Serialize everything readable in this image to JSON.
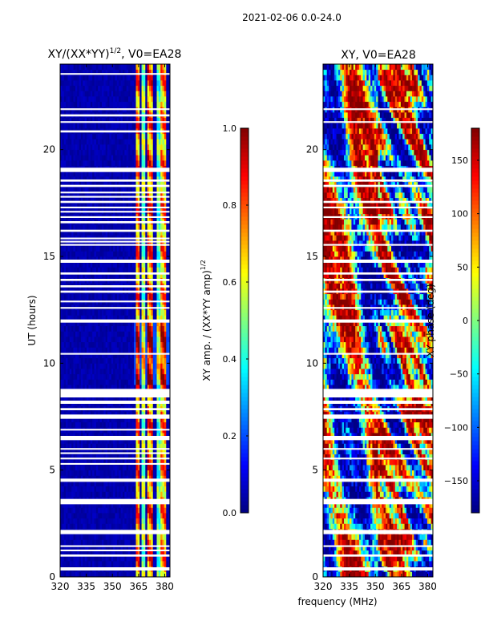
{
  "figure": {
    "suptitle": "2021-02-06 0.0-24.0",
    "xlabel_shared": "frequency (MHz)"
  },
  "chart_data": [
    {
      "type": "heatmap",
      "title": "XY/(XX*YY)^(1/2), V0=EA28",
      "title_main": "XY/(XX*YY)",
      "title_sup": "1/2",
      "title_suffix": ", V0=EA28",
      "xlabel": "frequency (MHz)",
      "ylabel": "UT (hours)",
      "xlim": [
        320,
        383
      ],
      "ylim": [
        0,
        24
      ],
      "xticks": [
        320,
        335,
        350,
        365,
        380
      ],
      "yticks": [
        0,
        5,
        10,
        15,
        20
      ],
      "colormap": "jet",
      "colorbar": {
        "label_main": "XY amp. / (XX*YY amp)",
        "label_sup": "1/2",
        "vmin": 0.0,
        "vmax": 1.0,
        "ticks": [
          0.0,
          0.2,
          0.4,
          0.6,
          0.8,
          1.0
        ],
        "tick_labels": [
          "0.0",
          "0.2",
          "0.4",
          "0.6",
          "0.8",
          "1.0"
        ]
      },
      "flagged_hours": [
        [
          0.3,
          0.45
        ],
        [
          0.95,
          1.05
        ],
        [
          1.2,
          1.28
        ],
        [
          1.4,
          1.48
        ],
        [
          2.0,
          2.2
        ],
        [
          3.4,
          3.65
        ],
        [
          4.45,
          4.6
        ],
        [
          5.25,
          5.33
        ],
        [
          5.5,
          5.58
        ],
        [
          5.75,
          5.83
        ],
        [
          5.95,
          6.03
        ],
        [
          6.4,
          6.6
        ],
        [
          6.85,
          6.93
        ],
        [
          7.4,
          7.6
        ],
        [
          7.8,
          7.9
        ],
        [
          8.1,
          8.25
        ],
        [
          8.4,
          8.8
        ],
        [
          10.4,
          10.48
        ],
        [
          11.9,
          12.05
        ],
        [
          12.55,
          12.63
        ],
        [
          12.85,
          12.93
        ],
        [
          13.3,
          13.4
        ],
        [
          13.55,
          13.65
        ],
        [
          13.85,
          13.95
        ],
        [
          14.15,
          14.25
        ],
        [
          14.7,
          14.85
        ],
        [
          15.5,
          15.58
        ],
        [
          15.65,
          15.73
        ],
        [
          15.8,
          15.88
        ],
        [
          16.15,
          16.25
        ],
        [
          16.55,
          16.65
        ],
        [
          16.8,
          16.88
        ],
        [
          17.05,
          17.13
        ],
        [
          17.25,
          17.33
        ],
        [
          17.5,
          17.6
        ],
        [
          17.75,
          17.83
        ],
        [
          17.95,
          18.03
        ],
        [
          18.25,
          18.35
        ],
        [
          18.5,
          18.6
        ],
        [
          18.95,
          19.15
        ],
        [
          20.8,
          20.9
        ],
        [
          21.25,
          21.33
        ],
        [
          21.55,
          21.65
        ],
        [
          21.85,
          21.93
        ],
        [
          23.5,
          23.58
        ]
      ],
      "bands": [
        {
          "fmin": 363,
          "fmax": 365.5,
          "value_low": 0.55,
          "value_high": 0.85
        },
        {
          "fmin": 367,
          "fmax": 369,
          "value_low": 0.35,
          "value_high": 0.6
        },
        {
          "fmin": 370,
          "fmax": 373,
          "value_low": 0.55,
          "value_high": 0.9
        },
        {
          "fmin": 375,
          "fmax": 377.5,
          "value_low": 0.3,
          "value_high": 0.55
        },
        {
          "fmin": 378,
          "fmax": 381,
          "value_low": 0.5,
          "value_high": 0.85
        }
      ]
    },
    {
      "type": "heatmap",
      "title": "XY, V0=EA28",
      "xlabel": "frequency (MHz)",
      "ylabel": "",
      "xlim": [
        320,
        383
      ],
      "ylim": [
        0,
        24
      ],
      "xticks": [
        320,
        335,
        350,
        365,
        380
      ],
      "yticks": [
        0,
        5,
        10,
        15,
        20
      ],
      "colormap": "jet",
      "colorbar": {
        "label": "XY phase (deg)",
        "vmin": -180,
        "vmax": 180,
        "ticks": [
          -150,
          -100,
          -50,
          0,
          50,
          100,
          150
        ],
        "tick_labels": [
          "−150",
          "−100",
          "−50",
          "0",
          "50",
          "100",
          "150"
        ]
      },
      "flagged_hours": [
        [
          0.3,
          0.45
        ],
        [
          0.95,
          1.05
        ],
        [
          1.4,
          1.48
        ],
        [
          2.0,
          2.2
        ],
        [
          3.4,
          3.65
        ],
        [
          4.45,
          4.6
        ],
        [
          5.5,
          5.58
        ],
        [
          5.95,
          6.03
        ],
        [
          6.4,
          6.6
        ],
        [
          7.4,
          7.6
        ],
        [
          7.8,
          7.9
        ],
        [
          8.1,
          8.25
        ],
        [
          8.4,
          8.8
        ],
        [
          10.4,
          10.48
        ],
        [
          11.9,
          12.05
        ],
        [
          12.55,
          12.63
        ],
        [
          13.3,
          13.4
        ],
        [
          13.85,
          13.95
        ],
        [
          14.15,
          14.25
        ],
        [
          14.7,
          14.85
        ],
        [
          15.5,
          15.58
        ],
        [
          16.15,
          16.25
        ],
        [
          16.8,
          16.88
        ],
        [
          17.25,
          17.33
        ],
        [
          17.5,
          17.6
        ],
        [
          18.25,
          18.35
        ],
        [
          18.5,
          18.6
        ],
        [
          18.95,
          19.15
        ],
        [
          21.25,
          21.33
        ],
        [
          21.85,
          21.93
        ]
      ]
    }
  ]
}
